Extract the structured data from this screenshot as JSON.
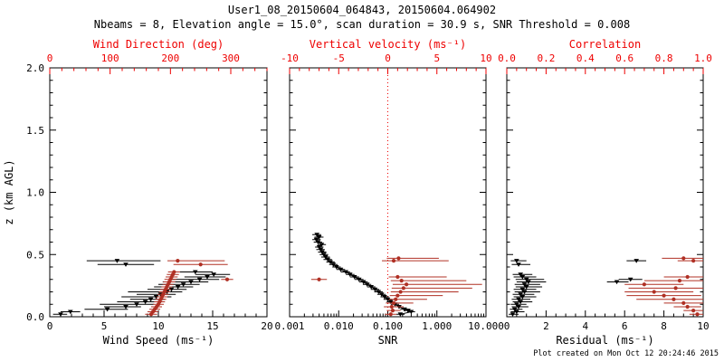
{
  "header": {
    "title": "User1_08_20150604_064843, 20150604.064902",
    "subtitle": "Nbeams = 8, Elevation angle = 15.0°, scan duration = 30.9 s, SNR Threshold = 0.008"
  },
  "footer": {
    "created": "Plot created on Mon Oct 12 20:24:46 2015"
  },
  "colors": {
    "background": "#ffffff",
    "black": "#000000",
    "axis_red": "#ee0000",
    "data_red": "#b03024"
  },
  "chart_data": [
    {
      "type": "scatter",
      "name": "wind",
      "ylabel": "z (km AGL)",
      "ylim": [
        0,
        2.0
      ],
      "yticks": [
        0.0,
        0.5,
        1.0,
        1.5,
        2.0
      ],
      "ytick_labels": [
        "0.0",
        "0.5",
        "1.0",
        "1.5",
        "2.0"
      ],
      "yminor": 0.1,
      "show_ytick_labels": true,
      "xlabel_bottom": "Wind Speed (ms⁻¹)",
      "xlim_bottom": [
        0,
        20
      ],
      "xticks_bottom": [
        0,
        5,
        10,
        15,
        20
      ],
      "xtick_labels_bottom": [
        "0",
        "5",
        "10",
        "15",
        "20"
      ],
      "xminor_bottom": 1,
      "xlabel_top": "Wind Direction (deg)",
      "xlim_top": [
        0,
        360
      ],
      "xticks_top": [
        0,
        100,
        200,
        300
      ],
      "xtick_labels_top": [
        "0",
        "100",
        "200",
        "300"
      ],
      "xminor_top": 20,
      "grid": false,
      "legend": "none",
      "series": [
        {
          "name": "wind-speed",
          "color_key": "black",
          "axis": "bottom",
          "marker": "triangle",
          "connect": false,
          "points": [
            [
              0.02,
              1.0,
              0.3,
              1.6
            ],
            [
              0.04,
              1.9,
              1.0,
              2.8
            ],
            [
              0.06,
              5.3,
              3.2,
              7.2
            ],
            [
              0.08,
              7.0,
              5.0,
              8.4
            ],
            [
              0.1,
              8.0,
              4.6,
              9.6
            ],
            [
              0.12,
              8.8,
              6.2,
              10.2
            ],
            [
              0.14,
              9.3,
              7.4,
              10.6
            ],
            [
              0.16,
              9.8,
              6.6,
              11.2
            ],
            [
              0.18,
              10.2,
              8.0,
              11.6
            ],
            [
              0.2,
              10.8,
              7.2,
              12.2
            ],
            [
              0.22,
              11.2,
              9.0,
              12.6
            ],
            [
              0.24,
              11.8,
              9.6,
              13.2
            ],
            [
              0.26,
              12.3,
              10.0,
              13.8
            ],
            [
              0.28,
              13.0,
              10.4,
              14.6
            ],
            [
              0.3,
              13.8,
              11.0,
              15.6
            ],
            [
              0.32,
              14.5,
              12.4,
              16.2
            ],
            [
              0.34,
              15.1,
              13.4,
              16.6
            ],
            [
              0.36,
              13.4,
              11.8,
              15.0
            ],
            [
              0.42,
              7.0,
              4.4,
              9.6
            ],
            [
              0.45,
              6.2,
              3.4,
              10.2
            ]
          ]
        },
        {
          "name": "wind-direction",
          "color_key": "data_red",
          "axis": "top",
          "marker": "circle",
          "connect": false,
          "points": [
            [
              0.02,
              168,
              158,
              178
            ],
            [
              0.04,
              171,
              162,
              180
            ],
            [
              0.06,
              174,
              165,
              183
            ],
            [
              0.08,
              177,
              168,
              186
            ],
            [
              0.1,
              180,
              171,
              189
            ],
            [
              0.12,
              182,
              173,
              191
            ],
            [
              0.14,
              184,
              175,
              193
            ],
            [
              0.16,
              186,
              177,
              195
            ],
            [
              0.18,
              188,
              179,
              197
            ],
            [
              0.2,
              190,
              181,
              199
            ],
            [
              0.22,
              192,
              183,
              201
            ],
            [
              0.24,
              194,
              185,
              203
            ],
            [
              0.26,
              196,
              187,
              205
            ],
            [
              0.28,
              198,
              188,
              208
            ],
            [
              0.3,
              200,
              190,
              210
            ],
            [
              0.32,
              202,
              192,
              212
            ],
            [
              0.34,
              204,
              194,
              214
            ],
            [
              0.36,
              206,
              196,
              216
            ],
            [
              0.3,
              294,
              284,
              304
            ],
            [
              0.42,
              250,
              205,
              295
            ],
            [
              0.45,
              212,
              195,
              290
            ]
          ]
        }
      ]
    },
    {
      "type": "scatter",
      "name": "snr",
      "ylabel": "",
      "ylim": [
        0,
        2.0
      ],
      "yticks": [
        0.0,
        0.5,
        1.0,
        1.5,
        2.0
      ],
      "ytick_labels": [
        "0.0",
        "0.5",
        "1.0",
        "1.5",
        "2.0"
      ],
      "yminor": 0.1,
      "show_ytick_labels": false,
      "xlabel_bottom": "SNR",
      "xscale_bottom": "log",
      "xlim_bottom": [
        0.001,
        10
      ],
      "xticks_bottom": [
        0.001,
        0.01,
        0.1,
        1,
        10
      ],
      "xtick_labels_bottom": [
        "0.001",
        "0.010",
        "0.100",
        "1.000",
        "10.000"
      ],
      "xlabel_top": "Vertical velocity (ms⁻¹)",
      "xlim_top": [
        -10,
        10
      ],
      "xticks_top": [
        -10,
        -5,
        0,
        5,
        10
      ],
      "xtick_labels_top": [
        "-10",
        "-5",
        "0",
        "5",
        "10"
      ],
      "xminor_top": 1,
      "refline_top": 0,
      "grid": false,
      "legend": "none",
      "series": [
        {
          "name": "snr-profile",
          "color_key": "black",
          "axis": "bottom",
          "marker": "triangle",
          "connect": true,
          "points": [
            [
              0.02,
              0.18,
              0.15,
              0.22
            ],
            [
              0.04,
              0.3,
              0.25,
              0.36
            ],
            [
              0.05,
              0.26,
              0.21,
              0.31
            ],
            [
              0.06,
              0.22,
              0.18,
              0.27
            ],
            [
              0.08,
              0.17,
              0.14,
              0.21
            ],
            [
              0.1,
              0.14,
              0.115,
              0.17
            ],
            [
              0.12,
              0.115,
              0.095,
              0.14
            ],
            [
              0.14,
              0.1,
              0.082,
              0.12
            ],
            [
              0.16,
              0.086,
              0.071,
              0.105
            ],
            [
              0.18,
              0.075,
              0.061,
              0.091
            ],
            [
              0.2,
              0.065,
              0.053,
              0.079
            ],
            [
              0.22,
              0.055,
              0.045,
              0.067
            ],
            [
              0.24,
              0.046,
              0.038,
              0.056
            ],
            [
              0.26,
              0.038,
              0.031,
              0.046
            ],
            [
              0.28,
              0.032,
              0.026,
              0.039
            ],
            [
              0.3,
              0.026,
              0.021,
              0.032
            ],
            [
              0.32,
              0.021,
              0.017,
              0.026
            ],
            [
              0.34,
              0.017,
              0.014,
              0.021
            ],
            [
              0.36,
              0.014,
              0.011,
              0.017
            ],
            [
              0.38,
              0.011,
              0.009,
              0.0135
            ],
            [
              0.4,
              0.009,
              0.0074,
              0.011
            ],
            [
              0.42,
              0.0078,
              0.0064,
              0.0095
            ],
            [
              0.44,
              0.0068,
              0.0056,
              0.0083
            ],
            [
              0.46,
              0.006,
              0.0049,
              0.0073
            ],
            [
              0.48,
              0.0054,
              0.0044,
              0.0066
            ],
            [
              0.5,
              0.005,
              0.0041,
              0.0061
            ],
            [
              0.52,
              0.0046,
              0.0038,
              0.0056
            ],
            [
              0.54,
              0.0043,
              0.0035,
              0.0052
            ],
            [
              0.56,
              0.004,
              0.0033,
              0.0049
            ],
            [
              0.58,
              0.0045,
              0.0037,
              0.0055
            ],
            [
              0.6,
              0.0038,
              0.0031,
              0.0046
            ],
            [
              0.62,
              0.0035,
              0.0029,
              0.0043
            ],
            [
              0.64,
              0.004,
              0.0032,
              0.0049
            ],
            [
              0.66,
              0.0036,
              0.0029,
              0.0044
            ]
          ]
        },
        {
          "name": "vertical-velocity",
          "color_key": "data_red",
          "axis": "top",
          "marker": "circle",
          "connect": false,
          "points": [
            [
              0.02,
              0.3,
              -0.3,
              0.9
            ],
            [
              0.05,
              0.5,
              -0.1,
              1.3
            ],
            [
              0.08,
              0.4,
              -0.4,
              1.6
            ],
            [
              0.11,
              0.6,
              -0.2,
              2.6
            ],
            [
              0.14,
              0.8,
              0.1,
              4.0
            ],
            [
              0.17,
              1.0,
              0.2,
              5.6
            ],
            [
              0.2,
              1.3,
              0.3,
              7.2
            ],
            [
              0.23,
              1.6,
              0.4,
              8.6
            ],
            [
              0.26,
              1.9,
              0.5,
              9.6
            ],
            [
              0.29,
              1.4,
              0.3,
              8.0
            ],
            [
              0.32,
              1.0,
              0.1,
              6.0
            ],
            [
              0.3,
              -7.0,
              -7.8,
              -6.2
            ],
            [
              0.45,
              0.6,
              -0.6,
              6.2
            ],
            [
              0.47,
              1.1,
              -0.1,
              5.2
            ]
          ]
        }
      ]
    },
    {
      "type": "scatter",
      "name": "residual",
      "ylabel": "",
      "ylim": [
        0,
        2.0
      ],
      "yticks": [
        0.0,
        0.5,
        1.0,
        1.5,
        2.0
      ],
      "ytick_labels": [
        "0.0",
        "0.5",
        "1.0",
        "1.5",
        "2.0"
      ],
      "yminor": 0.1,
      "show_ytick_labels": false,
      "xlabel_bottom": "Residual (ms⁻¹)",
      "xlim_bottom": [
        0,
        10
      ],
      "xticks_bottom": [
        0,
        2,
        4,
        6,
        8,
        10
      ],
      "xtick_labels_bottom": [
        "0",
        "2",
        "4",
        "6",
        "8",
        "10"
      ],
      "xminor_bottom": 0.5,
      "xlabel_top": "Correlation",
      "xlim_top": [
        0.0,
        1.0
      ],
      "xticks_top": [
        0.0,
        0.2,
        0.4,
        0.6,
        0.8,
        1.0
      ],
      "xtick_labels_top": [
        "0.0",
        "0.2",
        "0.4",
        "0.6",
        "0.8",
        "1.0"
      ],
      "xminor_top": 0.05,
      "grid": false,
      "legend": "none",
      "series": [
        {
          "name": "residual-profile",
          "color_key": "black",
          "axis": "bottom",
          "marker": "triangle",
          "connect": false,
          "points": [
            [
              0.02,
              0.3,
              0.1,
              0.6
            ],
            [
              0.04,
              0.5,
              0.2,
              0.9
            ],
            [
              0.06,
              0.4,
              0.15,
              0.8
            ],
            [
              0.08,
              0.6,
              0.25,
              1.1
            ],
            [
              0.1,
              0.5,
              0.2,
              1.0
            ],
            [
              0.12,
              0.7,
              0.3,
              1.3
            ],
            [
              0.14,
              0.6,
              0.25,
              1.2
            ],
            [
              0.16,
              0.8,
              0.35,
              1.5
            ],
            [
              0.18,
              0.7,
              0.3,
              1.4
            ],
            [
              0.2,
              0.9,
              0.4,
              1.7
            ],
            [
              0.22,
              0.8,
              0.35,
              1.5
            ],
            [
              0.24,
              1.0,
              0.45,
              1.8
            ],
            [
              0.26,
              0.9,
              0.4,
              1.7
            ],
            [
              0.28,
              1.1,
              0.5,
              2.0
            ],
            [
              0.3,
              1.0,
              0.45,
              1.9
            ],
            [
              0.32,
              0.8,
              0.35,
              1.5
            ],
            [
              0.34,
              0.7,
              0.3,
              1.3
            ],
            [
              0.28,
              5.6,
              5.1,
              6.2
            ],
            [
              0.3,
              6.3,
              5.7,
              6.9
            ],
            [
              0.42,
              0.6,
              0.25,
              1.2
            ],
            [
              0.45,
              0.5,
              0.2,
              1.0
            ],
            [
              0.45,
              6.6,
              6.1,
              7.1
            ]
          ]
        },
        {
          "name": "correlation",
          "color_key": "data_red",
          "axis": "top",
          "marker": "circle",
          "connect": false,
          "points": [
            [
              0.02,
              0.97,
              0.93,
              1.0
            ],
            [
              0.05,
              0.95,
              0.9,
              1.0
            ],
            [
              0.08,
              0.92,
              0.85,
              0.99
            ],
            [
              0.11,
              0.9,
              0.8,
              1.0
            ],
            [
              0.14,
              0.85,
              0.66,
              1.0
            ],
            [
              0.17,
              0.8,
              0.61,
              0.99
            ],
            [
              0.2,
              0.75,
              0.6,
              0.95
            ],
            [
              0.23,
              0.86,
              0.62,
              1.0
            ],
            [
              0.26,
              0.7,
              0.6,
              0.9
            ],
            [
              0.29,
              0.88,
              0.7,
              1.0
            ],
            [
              0.32,
              0.92,
              0.8,
              1.0
            ],
            [
              0.45,
              0.95,
              0.87,
              1.0
            ],
            [
              0.47,
              0.9,
              0.79,
              1.0
            ]
          ]
        }
      ]
    }
  ]
}
